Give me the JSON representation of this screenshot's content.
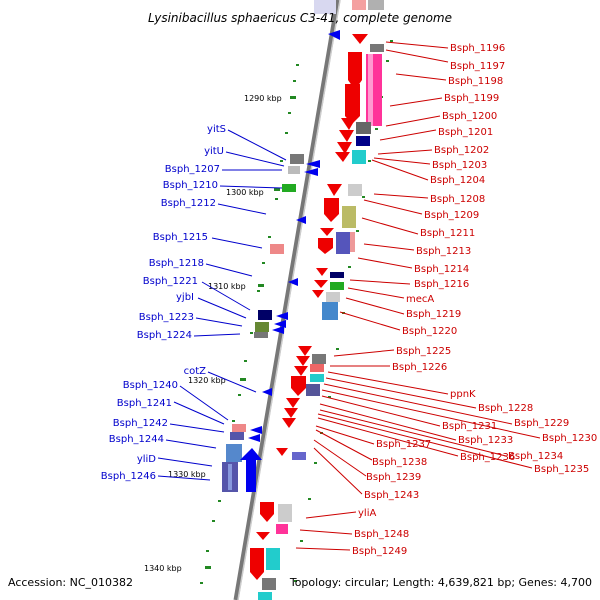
{
  "title": "Lysinibacillus sphaericus C3-41, complete genome",
  "footer": {
    "accession": "Accession: NC_010382",
    "topology": "Topology: circular; Length: 4,639,821 bp; Genes: 4,700"
  },
  "ticks": [
    "1290 kbp",
    "1300 kbp",
    "1310 kbp",
    "1320 kbp",
    "1330 kbp",
    "1340 kbp"
  ],
  "right_labels": [
    "Bsph_1196",
    "Bsph_1197",
    "Bsph_1198",
    "Bsph_1199",
    "Bsph_1200",
    "Bsph_1201",
    "Bsph_1202",
    "Bsph_1203",
    "Bsph_1204",
    "Bsph_1208",
    "Bsph_1209",
    "Bsph_1211",
    "Bsph_1213",
    "Bsph_1214",
    "Bsph_1216",
    "mecA",
    "Bsph_1219",
    "Bsph_1220",
    "Bsph_1225",
    "Bsph_1226",
    "ppnK",
    "Bsph_1228",
    "Bsph_1229",
    "Bsph_1230",
    "Bsph_1231",
    "Bsph_1233",
    "Bsph_1234",
    "Bsph_1235",
    "Bsph_1236",
    "Bsph_1237",
    "Bsph_1238",
    "Bsph_1239",
    "Bsph_1243",
    "yliA",
    "Bsph_1248",
    "Bsph_1249"
  ],
  "left_labels": [
    "yitS",
    "yitU",
    "Bsph_1207",
    "Bsph_1210",
    "Bsph_1212",
    "Bsph_1215",
    "Bsph_1218",
    "Bsph_1221",
    "yjbI",
    "Bsph_1223",
    "Bsph_1224",
    "cotZ",
    "Bsph_1240",
    "Bsph_1241",
    "Bsph_1242",
    "Bsph_1244",
    "yliD",
    "Bsph_1246"
  ],
  "colors": {
    "forward": "#ee0000",
    "reverse": "#0000ee",
    "label_right": "#cc0000",
    "label_left": "#0000cc",
    "backbone": "#888888"
  }
}
